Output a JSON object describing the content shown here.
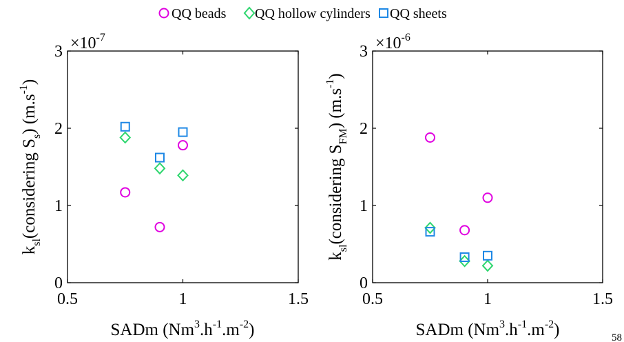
{
  "legend": {
    "placement": "top-center",
    "items": [
      {
        "label": "QQ beads",
        "marker": "circle",
        "color": "#e000e0"
      },
      {
        "label": "QQ hollow cylinders",
        "marker": "diamond",
        "color": "#2ed66e"
      },
      {
        "label": "QQ sheets",
        "marker": "square",
        "color": "#1e88e5"
      }
    ]
  },
  "corner_text": "58",
  "chart_data": [
    {
      "type": "scatter",
      "title": "",
      "xlabel": {
        "base": "SADm (Nm",
        "sup1": "3",
        "mid1": ".h",
        "sup2": "-1",
        "mid2": ".m",
        "sup3": "-2",
        "end": ")"
      },
      "ylabel": {
        "k": "k",
        "ksub": "sl",
        "pre": "(considering S",
        "sub": "s",
        "post": ") (m.s",
        "sup": "-1",
        "end": ")"
      },
      "xlim": [
        0.5,
        1.5
      ],
      "ylim": [
        0,
        3
      ],
      "xticks": [
        0.5,
        1,
        1.5
      ],
      "xtick_labels": [
        "0.5",
        "1",
        "1.5"
      ],
      "yticks": [
        0,
        1,
        2,
        3
      ],
      "ytick_labels": [
        "0",
        "1",
        "2",
        "3"
      ],
      "exponent": {
        "base": "×10",
        "exp": "-7"
      },
      "grid": false,
      "series": [
        {
          "name": "QQ beads",
          "x": [
            0.75,
            0.9,
            1.0
          ],
          "y": [
            1.17,
            0.72,
            1.78
          ]
        },
        {
          "name": "QQ hollow cylinders",
          "x": [
            0.75,
            0.9,
            1.0
          ],
          "y": [
            1.88,
            1.48,
            1.39
          ]
        },
        {
          "name": "QQ sheets",
          "x": [
            0.75,
            0.9,
            1.0
          ],
          "y": [
            2.02,
            1.62,
            1.95
          ]
        }
      ]
    },
    {
      "type": "scatter",
      "title": "",
      "xlabel": {
        "base": "SADm (Nm",
        "sup1": "3",
        "mid1": ".h",
        "sup2": "-1",
        "mid2": ".m",
        "sup3": "-2",
        "end": ")"
      },
      "ylabel": {
        "k": "k",
        "ksub": "sl",
        "pre": "(considering S",
        "sub": "FM",
        "post": ") (m.s",
        "sup": "-1",
        "end": ")"
      },
      "xlim": [
        0.5,
        1.5
      ],
      "ylim": [
        0,
        3
      ],
      "xticks": [
        0.5,
        1,
        1.5
      ],
      "xtick_labels": [
        "0.5",
        "1",
        "1.5"
      ],
      "yticks": [
        0,
        1,
        2,
        3
      ],
      "ytick_labels": [
        "0",
        "1",
        "2",
        "3"
      ],
      "exponent": {
        "base": "×10",
        "exp": "-6"
      },
      "grid": false,
      "series": [
        {
          "name": "QQ beads",
          "x": [
            0.75,
            0.9,
            1.0
          ],
          "y": [
            1.88,
            0.68,
            1.1
          ]
        },
        {
          "name": "QQ hollow cylinders",
          "x": [
            0.75,
            0.9,
            1.0
          ],
          "y": [
            0.71,
            0.28,
            0.22
          ]
        },
        {
          "name": "QQ sheets",
          "x": [
            0.75,
            0.9,
            1.0
          ],
          "y": [
            0.66,
            0.33,
            0.35
          ]
        }
      ]
    }
  ]
}
